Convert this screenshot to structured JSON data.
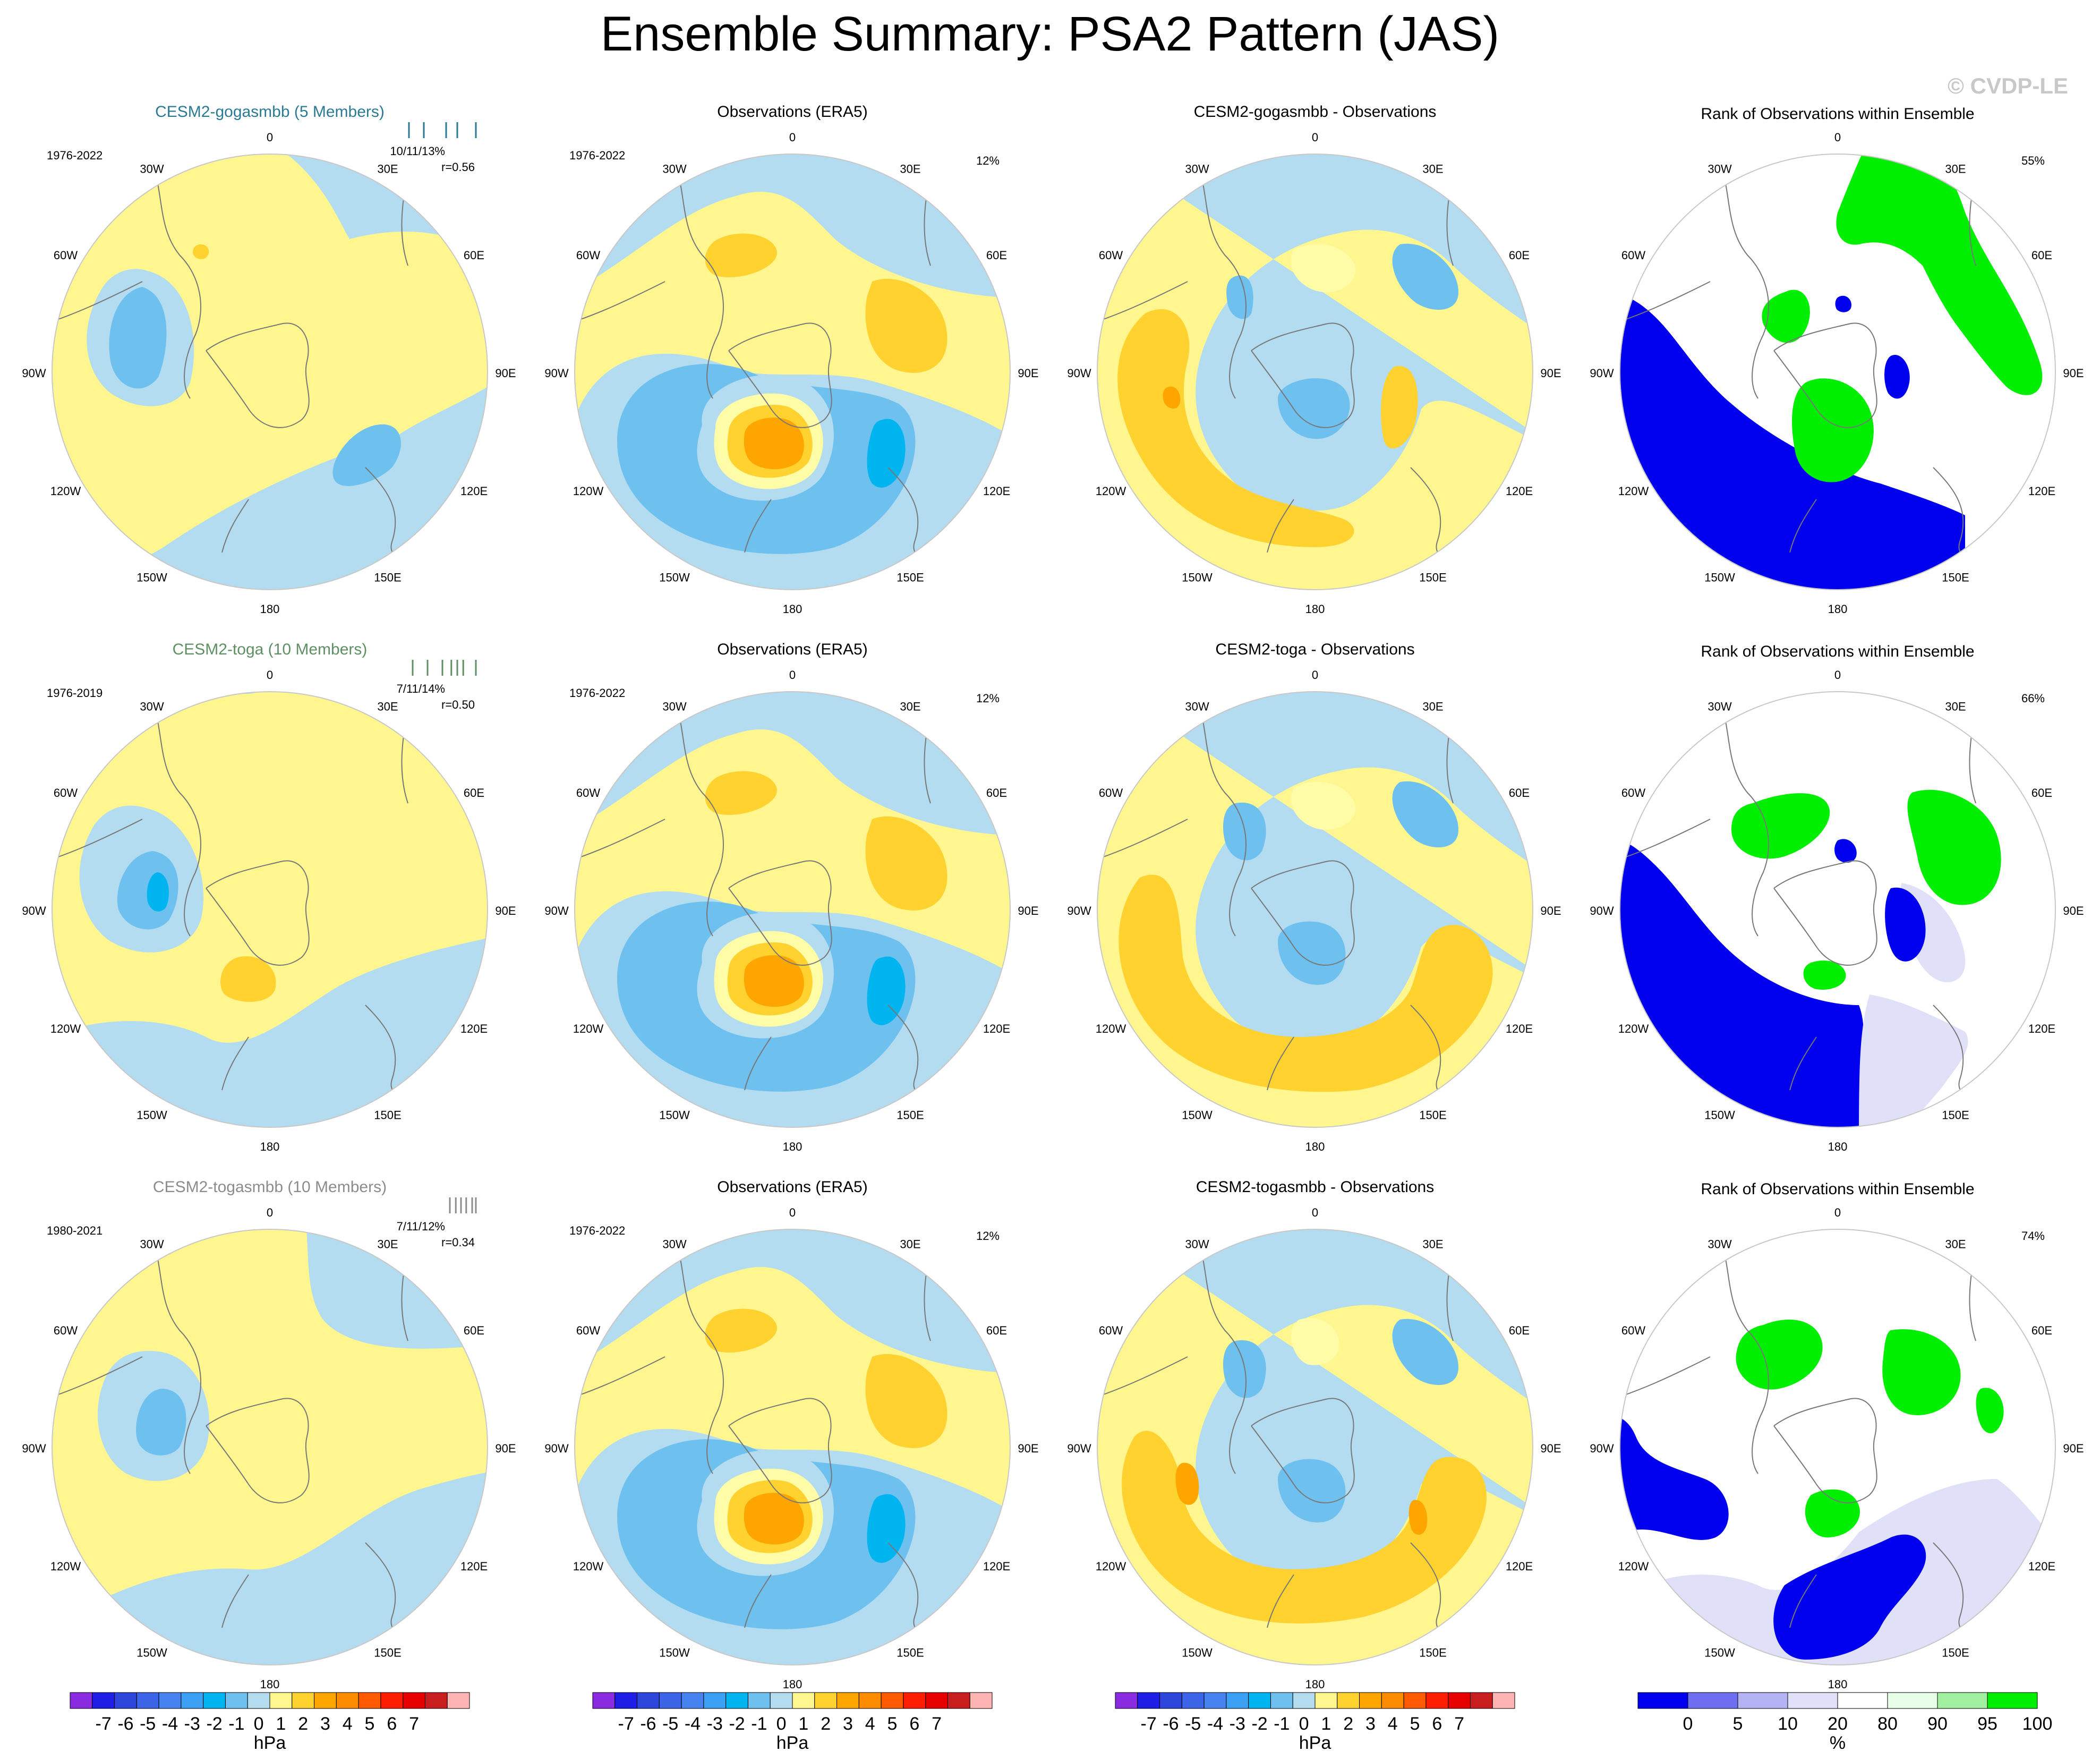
{
  "title": "Ensemble Summary: PSA2 Pattern (JAS)",
  "credit": "© CVDP-LE",
  "colors": {
    "yellow": "#fff68f",
    "light_yellow": "#fffca8",
    "gold": "#ffd230",
    "orange": "#ffa500",
    "light_blue": "#b4dcf0",
    "mid_blue": "#6ec1ee",
    "cyan": "#00b4f0",
    "rank_blue": "#0000ee",
    "rank_lavender": "#e0e0f8",
    "rank_green": "#00ee00",
    "rank_pale_green": "#e6ffe6",
    "land": "#777777"
  },
  "lon_labels": [
    "0",
    "30E",
    "60E",
    "90E",
    "120E",
    "150E",
    "180",
    "150W",
    "120W",
    "90W",
    "60W",
    "30W"
  ],
  "rows": [
    {
      "model": {
        "title": "CESM2-gogasmbb (5 Members)",
        "title_color": "#2a7a96",
        "period": "1976-2022",
        "stats": "10/11/13%",
        "r": "r=0.56",
        "pattern": "model1",
        "ticks": [
          0.05,
          0.25,
          0.55,
          0.7,
          0.95
        ]
      },
      "obs": {
        "title": "Observations (ERA5)",
        "period": "1976-2022",
        "pct": "12%"
      },
      "diff": {
        "title": "CESM2-gogasmbb - Observations",
        "pattern": "diff1"
      },
      "rank": {
        "title": "Rank of Observations within Ensemble",
        "pct": "55%",
        "pattern": "rank1"
      }
    },
    {
      "model": {
        "title": "CESM2-toga (10 Members)",
        "title_color": "#5f8f64",
        "period": "1976-2019",
        "stats": "7/11/14%",
        "r": "r=0.50",
        "pattern": "model2",
        "ticks": [
          0.1,
          0.3,
          0.5,
          0.62,
          0.7,
          0.78,
          0.95
        ]
      },
      "obs": {
        "title": "Observations (ERA5)",
        "period": "1976-2022",
        "pct": "12%"
      },
      "diff": {
        "title": "CESM2-toga - Observations",
        "pattern": "diff2"
      },
      "rank": {
        "title": "Rank of Observations within Ensemble",
        "pct": "66%",
        "pattern": "rank2"
      }
    },
    {
      "model": {
        "title": "CESM2-togasmbb (10 Members)",
        "title_color": "#8c8c8c",
        "period": "1980-2021",
        "stats": "7/11/12%",
        "r": "r=0.34",
        "pattern": "model3",
        "ticks": [
          0.6,
          0.68,
          0.75,
          0.82,
          0.9,
          0.95
        ]
      },
      "obs": {
        "title": "Observations (ERA5)",
        "period": "1976-2022",
        "pct": "12%"
      },
      "diff": {
        "title": "CESM2-togasmbb - Observations",
        "pattern": "diff3"
      },
      "rank": {
        "title": "Rank of Observations within Ensemble",
        "pct": "74%",
        "pattern": "rank3"
      }
    }
  ],
  "chart_data": [
    {
      "type": "heatmap",
      "name": "anomaly colorbar",
      "unit": "hPa",
      "tick_labels": [
        "-7",
        "-6",
        "-5",
        "-4",
        "-3",
        "-2",
        "-1",
        "0",
        "1",
        "2",
        "3",
        "4",
        "5",
        "6",
        "7"
      ],
      "bin_colors": [
        "#8a2be2",
        "#1e1ee6",
        "#2d46dc",
        "#3c64e6",
        "#4682f0",
        "#3ca0f5",
        "#00b4f0",
        "#6ec1ee",
        "#b4dcf0",
        "#fff68f",
        "#ffd230",
        "#ffa500",
        "#ff8c00",
        "#ff5a00",
        "#ff1e00",
        "#e60000",
        "#c81e1e",
        "#ffb4b4"
      ],
      "repeated_under_columns": 3
    },
    {
      "type": "heatmap",
      "name": "rank colorbar",
      "unit": "%",
      "tick_labels": [
        "0",
        "5",
        "10",
        "20",
        "80",
        "90",
        "95",
        "100"
      ],
      "bin_colors": [
        "#0000ee",
        "#6e6ef0",
        "#b4b4f4",
        "#e0e0f8",
        "#ffffff",
        "#e6ffe6",
        "#a0f0a0",
        "#00ee00"
      ]
    }
  ]
}
